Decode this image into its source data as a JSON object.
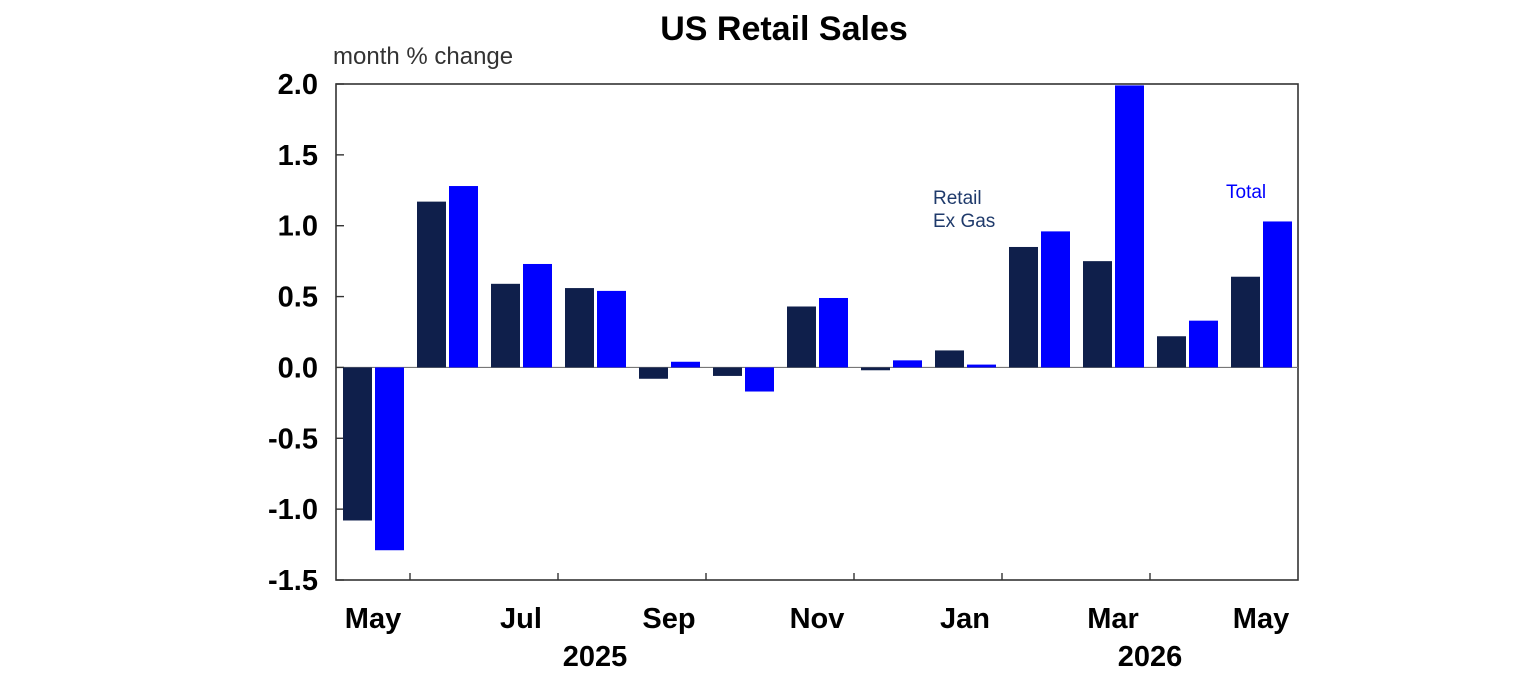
{
  "chart_data": {
    "type": "bar",
    "title": "US Retail Sales",
    "unit_label": "month % change",
    "ylim": [
      -1.5,
      2.0
    ],
    "yticks": [
      "2.0",
      "1.5",
      "1.0",
      "0.5",
      "0.0",
      "-0.5",
      "-1.0",
      "-1.5"
    ],
    "ytick_values": [
      2.0,
      1.5,
      1.0,
      0.5,
      0.0,
      -0.5,
      -1.0,
      -1.5
    ],
    "categories": [
      "May",
      "Jun",
      "Jul",
      "Aug",
      "Sep",
      "Oct",
      "Nov",
      "Dec",
      "Jan",
      "Feb",
      "Mar",
      "Apr",
      "May"
    ],
    "xtick_labels": [
      {
        "label": "May",
        "index": 0
      },
      {
        "label": "Jul",
        "index": 2
      },
      {
        "label": "Sep",
        "index": 4
      },
      {
        "label": "Nov",
        "index": 6
      },
      {
        "label": "Jan",
        "index": 8
      },
      {
        "label": "Mar",
        "index": 10
      },
      {
        "label": "May",
        "index": 12
      }
    ],
    "year_labels": [
      {
        "label": "2025",
        "index": 3
      },
      {
        "label": "2026",
        "index": 10.5
      }
    ],
    "series": [
      {
        "name": "Retail Ex Gas",
        "color": "#0f1f4b",
        "values": [
          -1.08,
          1.17,
          0.59,
          0.56,
          -0.08,
          -0.06,
          0.43,
          -0.02,
          0.12,
          0.85,
          0.75,
          0.22,
          0.64
        ]
      },
      {
        "name": "Total",
        "color": "#0000ff",
        "values": [
          -1.29,
          1.28,
          0.73,
          0.54,
          0.04,
          -0.17,
          0.49,
          0.05,
          0.02,
          0.96,
          1.99,
          0.33,
          1.03
        ]
      }
    ],
    "annotations": [
      {
        "lines": [
          "Retail",
          "Ex Gas"
        ],
        "series": "Retail Ex Gas",
        "color": "#1f3a6b"
      },
      {
        "lines": [
          "Total"
        ],
        "series": "Total",
        "color": "#0000ff"
      }
    ],
    "grid": false,
    "legend": "none"
  }
}
